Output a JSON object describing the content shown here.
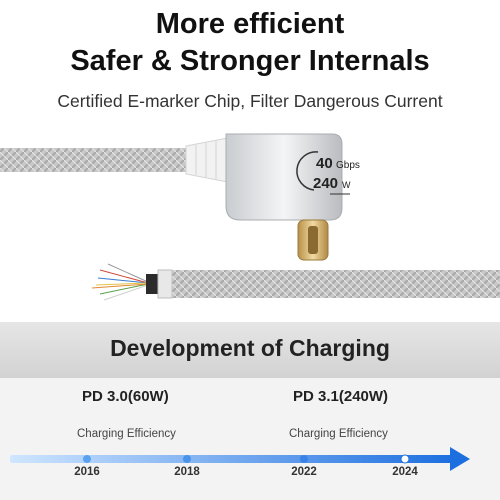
{
  "headline": {
    "line1": "More efficient",
    "line2": "Safer & Stronger Internals"
  },
  "subtitle": "Certified E-marker Chip, Filter Dangerous Current",
  "connector": {
    "speed_value": "40",
    "speed_unit": "Gbps",
    "power_value": "240",
    "power_unit": "W"
  },
  "development": {
    "title": "Development of Charging",
    "standards": [
      "PD 3.0(60W)",
      "PD 3.1(240W)"
    ],
    "efficiency_labels": [
      "Charging Efficiency",
      "Charging Efficiency"
    ],
    "years": [
      "2016",
      "2018",
      "2022",
      "2024"
    ]
  },
  "colors": {
    "timeline_start": "#bfe0ff",
    "timeline_end": "#1d6fe0",
    "braid": "#c9c9c9",
    "plug_gold": "#d9b46a"
  }
}
